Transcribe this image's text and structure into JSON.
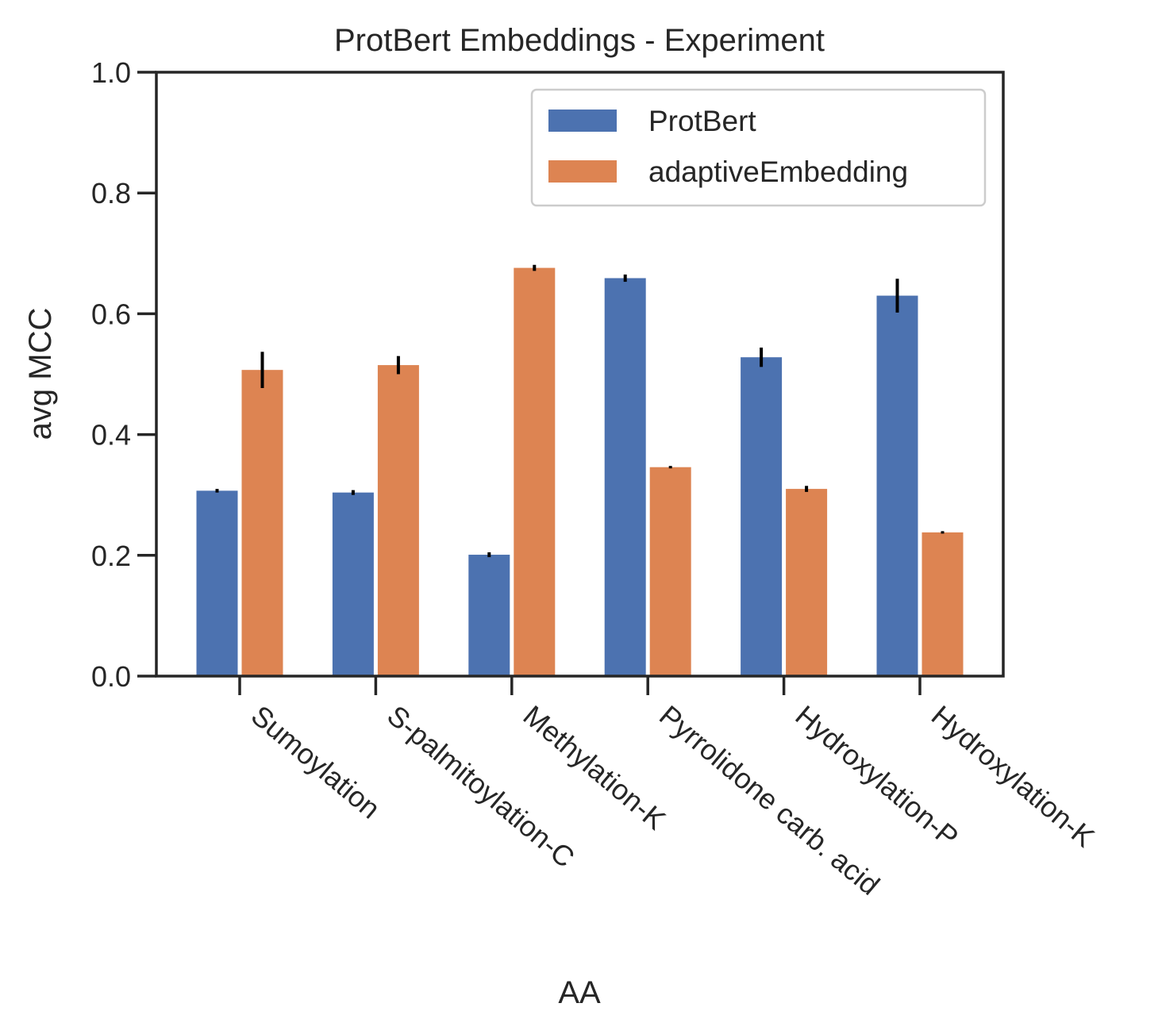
{
  "chart_data": {
    "type": "bar",
    "title": "ProtBert Embeddings - Experiment",
    "xlabel": "AA",
    "ylabel": "avg MCC",
    "ylim": [
      0,
      1.0
    ],
    "yticks": [
      "0.0",
      "0.2",
      "0.4",
      "0.6",
      "0.8",
      "1.0"
    ],
    "categories": [
      "Sumoylation",
      "S-palmitoylation-C",
      "Methylation-K",
      "Pyrrolidone carb. acid",
      "Hydroxylation-P",
      "Hydroxylation-K"
    ],
    "series": [
      {
        "name": "ProtBert",
        "color": "#4c72b0",
        "values": [
          0.307,
          0.304,
          0.201,
          0.659,
          0.528,
          0.63
        ],
        "errors": [
          0.003,
          0.004,
          0.004,
          0.006,
          0.016,
          0.028
        ]
      },
      {
        "name": "adaptiveEmbedding",
        "color": "#dd8452",
        "values": [
          0.507,
          0.515,
          0.676,
          0.346,
          0.31,
          0.238
        ],
        "errors": [
          0.03,
          0.015,
          0.005,
          0.002,
          0.005,
          0.002
        ]
      }
    ],
    "legend_position": "top-right",
    "grid": false
  }
}
